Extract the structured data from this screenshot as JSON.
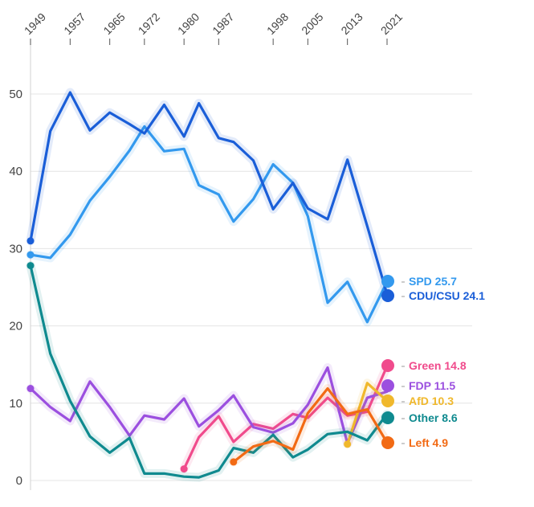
{
  "chart_data": {
    "type": "line",
    "title": "",
    "xlabel": "",
    "ylabel": "",
    "ylim": [
      0,
      55
    ],
    "xlim": [
      1949,
      2025
    ],
    "y_ticks": [
      0,
      10,
      20,
      30,
      40,
      50
    ],
    "x_ticks": [
      "1949",
      "1957",
      "1965",
      "1972",
      "1980",
      "1987",
      "1998",
      "2005",
      "2013",
      "2021"
    ],
    "x_tick_years": [
      1949,
      1957,
      1965,
      1972,
      1980,
      1987,
      1998,
      2005,
      2013,
      2021
    ],
    "grid": true,
    "legend_position": "right",
    "series": [
      {
        "name": "SPD",
        "label": "SPD 25.7",
        "latest": 25.7,
        "color": "#3399ee",
        "points": [
          [
            1949,
            29.2
          ],
          [
            1953,
            28.8
          ],
          [
            1957,
            31.8
          ],
          [
            1961,
            36.2
          ],
          [
            1965,
            39.3
          ],
          [
            1969,
            42.7
          ],
          [
            1972,
            45.8
          ],
          [
            1976,
            42.6
          ],
          [
            1980,
            42.9
          ],
          [
            1983,
            38.2
          ],
          [
            1987,
            37.0
          ],
          [
            1990,
            33.5
          ],
          [
            1994,
            36.4
          ],
          [
            1998,
            40.9
          ],
          [
            2002,
            38.5
          ],
          [
            2005,
            34.2
          ],
          [
            2009,
            23.0
          ],
          [
            2013,
            25.7
          ],
          [
            2017,
            20.5
          ],
          [
            2021,
            25.7
          ]
        ]
      },
      {
        "name": "CDU/CSU",
        "label": "CDU/CSU 24.1",
        "latest": 24.1,
        "color": "#1a5ed8",
        "points": [
          [
            1949,
            31.0
          ],
          [
            1953,
            45.2
          ],
          [
            1957,
            50.2
          ],
          [
            1961,
            45.3
          ],
          [
            1965,
            47.6
          ],
          [
            1969,
            46.1
          ],
          [
            1972,
            44.9
          ],
          [
            1976,
            48.6
          ],
          [
            1980,
            44.5
          ],
          [
            1983,
            48.8
          ],
          [
            1987,
            44.3
          ],
          [
            1990,
            43.8
          ],
          [
            1994,
            41.4
          ],
          [
            1998,
            35.1
          ],
          [
            2002,
            38.5
          ],
          [
            2005,
            35.2
          ],
          [
            2009,
            33.8
          ],
          [
            2013,
            41.5
          ],
          [
            2017,
            32.9
          ],
          [
            2021,
            24.1
          ]
        ]
      },
      {
        "name": "Green",
        "label": "Green 14.8",
        "latest": 14.8,
        "color": "#f04b8c",
        "points": [
          [
            1980,
            1.5
          ],
          [
            1983,
            5.6
          ],
          [
            1987,
            8.3
          ],
          [
            1990,
            5.0
          ],
          [
            1994,
            7.3
          ],
          [
            1998,
            6.7
          ],
          [
            2002,
            8.6
          ],
          [
            2005,
            8.1
          ],
          [
            2009,
            10.7
          ],
          [
            2013,
            8.4
          ],
          [
            2017,
            8.9
          ],
          [
            2021,
            14.8
          ]
        ]
      },
      {
        "name": "FDP",
        "label": "FDP 11.5",
        "latest": 11.5,
        "color": "#9b4fdf",
        "points": [
          [
            1949,
            11.9
          ],
          [
            1953,
            9.5
          ],
          [
            1957,
            7.7
          ],
          [
            1961,
            12.8
          ],
          [
            1965,
            9.5
          ],
          [
            1969,
            5.8
          ],
          [
            1972,
            8.4
          ],
          [
            1976,
            7.9
          ],
          [
            1980,
            10.6
          ],
          [
            1983,
            7.0
          ],
          [
            1987,
            9.1
          ],
          [
            1990,
            11.0
          ],
          [
            1994,
            6.9
          ],
          [
            1998,
            6.2
          ],
          [
            2002,
            7.4
          ],
          [
            2005,
            9.8
          ],
          [
            2009,
            14.6
          ],
          [
            2013,
            4.8
          ],
          [
            2017,
            10.7
          ],
          [
            2021,
            11.5
          ]
        ]
      },
      {
        "name": "AfD",
        "label": "AfD 10.3",
        "latest": 10.3,
        "color": "#f0b82c",
        "points": [
          [
            2013,
            4.7
          ],
          [
            2017,
            12.6
          ],
          [
            2021,
            10.3
          ]
        ]
      },
      {
        "name": "Other",
        "label": "Other 8.6",
        "latest": 8.6,
        "color": "#0f8a8f",
        "points": [
          [
            1949,
            27.8
          ],
          [
            1953,
            16.4
          ],
          [
            1957,
            10.3
          ],
          [
            1961,
            5.7
          ],
          [
            1965,
            3.6
          ],
          [
            1969,
            5.5
          ],
          [
            1972,
            0.9
          ],
          [
            1976,
            0.9
          ],
          [
            1980,
            0.5
          ],
          [
            1983,
            0.4
          ],
          [
            1987,
            1.3
          ],
          [
            1990,
            4.2
          ],
          [
            1994,
            3.6
          ],
          [
            1998,
            5.9
          ],
          [
            2002,
            3.0
          ],
          [
            2005,
            4.0
          ],
          [
            2009,
            6.0
          ],
          [
            2013,
            6.3
          ],
          [
            2017,
            5.2
          ],
          [
            2021,
            8.6
          ]
        ]
      },
      {
        "name": "Left",
        "label": "Left 4.9",
        "latest": 4.9,
        "color": "#f26a14",
        "points": [
          [
            1990,
            2.4
          ],
          [
            1994,
            4.4
          ],
          [
            1998,
            5.1
          ],
          [
            2002,
            4.0
          ],
          [
            2005,
            8.7
          ],
          [
            2009,
            11.9
          ],
          [
            2013,
            8.6
          ],
          [
            2017,
            9.2
          ],
          [
            2021,
            4.9
          ]
        ]
      }
    ]
  }
}
